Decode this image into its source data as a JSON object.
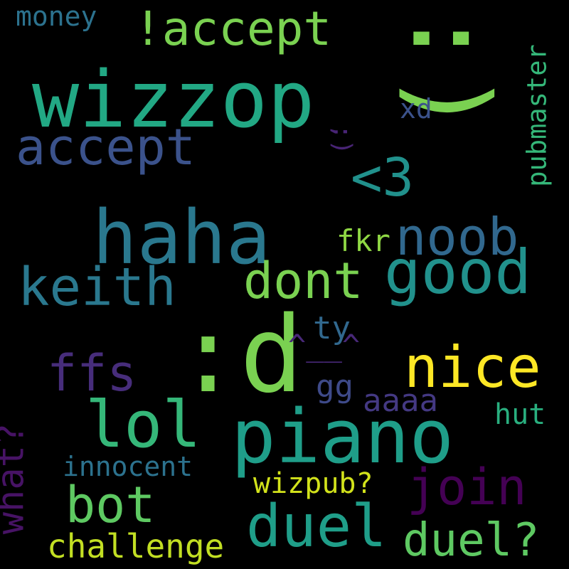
{
  "words": [
    {
      "id": "smiley-paren",
      "text": ":)",
      "color": "#7ad151"
    },
    {
      "id": "wizzop",
      "text": "wizzop",
      "color": "#22a884"
    },
    {
      "id": "haha",
      "text": "haha",
      "color": "#2a788e"
    },
    {
      "id": "d-smiley",
      "text": ":d",
      "color": "#7ad151"
    },
    {
      "id": "piano",
      "text": "piano",
      "color": "#1f9e89"
    },
    {
      "id": "accept-top",
      "text": "!accept",
      "color": "#7ad151"
    },
    {
      "id": "accept-mid",
      "text": "accept",
      "color": "#3b528b"
    },
    {
      "id": "good",
      "text": "good",
      "color": "#21918c"
    },
    {
      "id": "keith",
      "text": "keith",
      "color": "#2a788e"
    },
    {
      "id": "nice",
      "text": "nice",
      "color": "#fde725"
    },
    {
      "id": "lol",
      "text": "lol",
      "color": "#35b779"
    },
    {
      "id": "duel",
      "text": "duel",
      "color": "#1f9e89"
    },
    {
      "id": "noob",
      "text": "noob",
      "color": "#31688e"
    },
    {
      "id": "dont",
      "text": "dont",
      "color": "#7ad151"
    },
    {
      "id": "heart",
      "text": "<3",
      "color": "#21918c"
    },
    {
      "id": "ffs",
      "text": "ffs",
      "color": "#472d7b"
    },
    {
      "id": "join",
      "text": "join",
      "color": "#440154"
    },
    {
      "id": "bot",
      "text": "bot",
      "color": "#5ec962"
    },
    {
      "id": "duel-q",
      "text": "duel?",
      "color": "#5ec962"
    },
    {
      "id": "what-q",
      "text": "what?",
      "color": "#471365"
    },
    {
      "id": "caret-face",
      "text": "^__^",
      "color": "#482878"
    },
    {
      "id": "challenge",
      "text": "challenge",
      "color": "#c2df23"
    },
    {
      "id": "pubmaster",
      "text": "pubmaster",
      "color": "#35b779"
    },
    {
      "id": "money",
      "text": "money",
      "color": "#2c728e"
    },
    {
      "id": "xd",
      "text": "xd",
      "color": "#3b528b"
    },
    {
      "id": "wink",
      "text": ";)",
      "color": "#482475"
    },
    {
      "id": "fkr",
      "text": "fkr",
      "color": "#8fd744"
    },
    {
      "id": "ty",
      "text": "ty",
      "color": "#31688e"
    },
    {
      "id": "gg",
      "text": "gg",
      "color": "#3e4a89"
    },
    {
      "id": "aaaa",
      "text": "aaaa",
      "color": "#443983"
    },
    {
      "id": "hut",
      "text": "hut",
      "color": "#29af7f"
    },
    {
      "id": "innocent",
      "text": "innocent",
      "color": "#2c728e"
    },
    {
      "id": "wizpub-q",
      "text": "wizpub?",
      "color": "#d2e21b"
    }
  ]
}
